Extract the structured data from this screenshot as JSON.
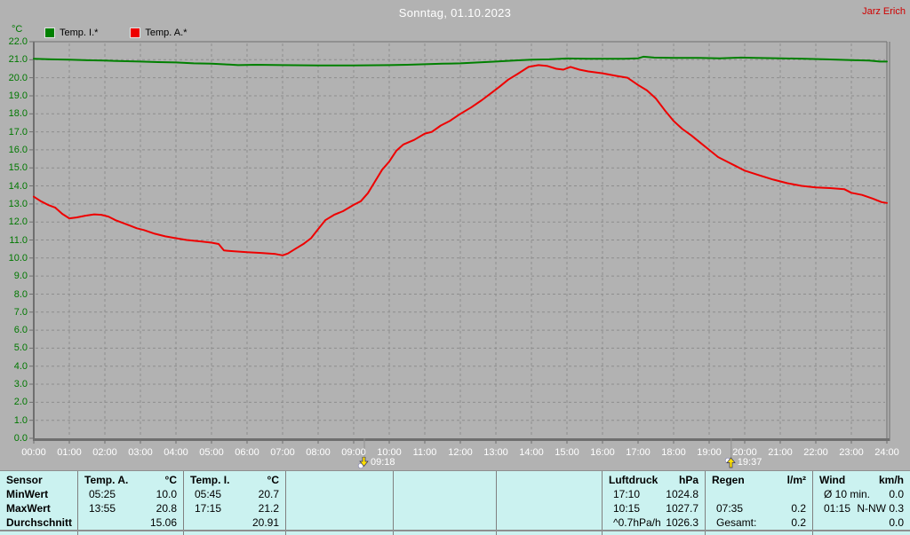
{
  "header": {
    "title": "Sonntag, 01.10.2023",
    "user": "Jarz Erich"
  },
  "legend": [
    {
      "label": "Temp. I.*",
      "color": "#008000"
    },
    {
      "label": "Temp. A.*",
      "color": "#ee0000"
    }
  ],
  "chart_data": {
    "type": "line",
    "title": "Sonntag, 01.10.2023",
    "grid": true,
    "legend_position": "top-left",
    "y_axis": {
      "unit": "°C",
      "min": 0,
      "max": 22,
      "tick_step": 1
    },
    "x_axis": {
      "min": 0,
      "max": 24,
      "tick_step": 1,
      "tick_labels": [
        "00:00",
        "01:00",
        "02:00",
        "03:00",
        "04:00",
        "05:00",
        "06:00",
        "07:00",
        "08:00",
        "09:00",
        "10:00",
        "11:00",
        "12:00",
        "13:00",
        "14:00",
        "15:00",
        "16:00",
        "17:00",
        "18:00",
        "19:00",
        "20:00",
        "21:00",
        "22:00",
        "23:00",
        "24:00"
      ]
    },
    "series": [
      {
        "id": "temp-i",
        "name": "Temp. I.*",
        "color": "#008000",
        "points": [
          [
            0,
            21.05
          ],
          [
            0.5,
            21.02
          ],
          [
            1,
            21.0
          ],
          [
            1.5,
            20.97
          ],
          [
            2,
            20.95
          ],
          [
            2.5,
            20.92
          ],
          [
            3,
            20.9
          ],
          [
            3.5,
            20.87
          ],
          [
            4,
            20.85
          ],
          [
            4.5,
            20.8
          ],
          [
            5,
            20.78
          ],
          [
            5.5,
            20.73
          ],
          [
            5.75,
            20.7
          ],
          [
            6.25,
            20.72
          ],
          [
            7,
            20.7
          ],
          [
            8,
            20.68
          ],
          [
            9,
            20.68
          ],
          [
            10,
            20.7
          ],
          [
            10.5,
            20.72
          ],
          [
            11,
            20.75
          ],
          [
            11.5,
            20.78
          ],
          [
            12,
            20.8
          ],
          [
            12.5,
            20.85
          ],
          [
            13,
            20.9
          ],
          [
            13.5,
            20.95
          ],
          [
            14,
            21.0
          ],
          [
            14.5,
            21.02
          ],
          [
            15,
            21.07
          ],
          [
            15.6,
            21.05
          ],
          [
            16.6,
            21.05
          ],
          [
            17,
            21.08
          ],
          [
            17.15,
            21.17
          ],
          [
            17.45,
            21.12
          ],
          [
            18,
            21.1
          ],
          [
            18.7,
            21.1
          ],
          [
            19.3,
            21.08
          ],
          [
            19.9,
            21.12
          ],
          [
            20.3,
            21.1
          ],
          [
            21,
            21.08
          ],
          [
            21.7,
            21.05
          ],
          [
            22.3,
            21.02
          ],
          [
            23,
            20.98
          ],
          [
            23.5,
            20.95
          ],
          [
            23.8,
            20.9
          ],
          [
            24,
            20.9
          ]
        ]
      },
      {
        "id": "temp-a",
        "name": "Temp. A.*",
        "color": "#ee0000",
        "points": [
          [
            0,
            13.4
          ],
          [
            0.2,
            13.15
          ],
          [
            0.4,
            12.95
          ],
          [
            0.6,
            12.8
          ],
          [
            0.8,
            12.45
          ],
          [
            1,
            12.2
          ],
          [
            1.2,
            12.25
          ],
          [
            1.45,
            12.35
          ],
          [
            1.7,
            12.42
          ],
          [
            1.9,
            12.4
          ],
          [
            2.1,
            12.3
          ],
          [
            2.3,
            12.1
          ],
          [
            2.5,
            11.95
          ],
          [
            2.7,
            11.8
          ],
          [
            2.9,
            11.65
          ],
          [
            3.1,
            11.55
          ],
          [
            3.4,
            11.35
          ],
          [
            3.7,
            11.2
          ],
          [
            4,
            11.1
          ],
          [
            4.3,
            11.0
          ],
          [
            4.7,
            10.92
          ],
          [
            5,
            10.85
          ],
          [
            5.2,
            10.78
          ],
          [
            5.35,
            10.42
          ],
          [
            5.6,
            10.38
          ],
          [
            6,
            10.32
          ],
          [
            6.4,
            10.28
          ],
          [
            6.8,
            10.22
          ],
          [
            7,
            10.15
          ],
          [
            7.15,
            10.25
          ],
          [
            7.35,
            10.5
          ],
          [
            7.6,
            10.8
          ],
          [
            7.8,
            11.1
          ],
          [
            8,
            11.6
          ],
          [
            8.2,
            12.1
          ],
          [
            8.45,
            12.4
          ],
          [
            8.7,
            12.6
          ],
          [
            9,
            12.95
          ],
          [
            9.2,
            13.15
          ],
          [
            9.4,
            13.6
          ],
          [
            9.6,
            14.25
          ],
          [
            9.8,
            14.9
          ],
          [
            10,
            15.35
          ],
          [
            10.2,
            15.95
          ],
          [
            10.4,
            16.3
          ],
          [
            10.7,
            16.55
          ],
          [
            11,
            16.9
          ],
          [
            11.2,
            17.0
          ],
          [
            11.45,
            17.35
          ],
          [
            11.7,
            17.6
          ],
          [
            12,
            18.0
          ],
          [
            12.3,
            18.35
          ],
          [
            12.6,
            18.75
          ],
          [
            12.9,
            19.2
          ],
          [
            13.1,
            19.5
          ],
          [
            13.35,
            19.9
          ],
          [
            13.6,
            20.2
          ],
          [
            13.92,
            20.6
          ],
          [
            14.2,
            20.7
          ],
          [
            14.45,
            20.65
          ],
          [
            14.7,
            20.5
          ],
          [
            14.9,
            20.45
          ],
          [
            15.1,
            20.6
          ],
          [
            15.35,
            20.45
          ],
          [
            15.6,
            20.35
          ],
          [
            16,
            20.25
          ],
          [
            16.4,
            20.1
          ],
          [
            16.7,
            20.0
          ],
          [
            17,
            19.6
          ],
          [
            17.25,
            19.3
          ],
          [
            17.5,
            18.85
          ],
          [
            17.75,
            18.2
          ],
          [
            18,
            17.6
          ],
          [
            18.25,
            17.15
          ],
          [
            18.5,
            16.8
          ],
          [
            18.75,
            16.4
          ],
          [
            19,
            16.0
          ],
          [
            19.25,
            15.6
          ],
          [
            19.5,
            15.35
          ],
          [
            19.75,
            15.1
          ],
          [
            20,
            14.85
          ],
          [
            20.4,
            14.6
          ],
          [
            20.8,
            14.35
          ],
          [
            21.2,
            14.15
          ],
          [
            21.6,
            14.0
          ],
          [
            22,
            13.92
          ],
          [
            22.4,
            13.88
          ],
          [
            22.8,
            13.82
          ],
          [
            23,
            13.62
          ],
          [
            23.3,
            13.5
          ],
          [
            23.6,
            13.3
          ],
          [
            23.85,
            13.1
          ],
          [
            24,
            13.05
          ]
        ]
      }
    ],
    "event_markers": [
      {
        "label": "09:18",
        "hour": 9.3,
        "icon": "down"
      },
      {
        "label": "19:37",
        "hour": 19.62,
        "icon": "up"
      }
    ]
  },
  "stats_table": {
    "row_labels": [
      "Sensor",
      "MinWert",
      "MaxWert",
      "Durchschnitt"
    ],
    "columns": [
      {
        "id": "temp-a",
        "name": "Temp. A.",
        "unit": "°C",
        "min": {
          "time": "05:25",
          "value": "10.0"
        },
        "max": {
          "time": "13:55",
          "value": "20.8"
        },
        "avg": {
          "time": "",
          "value": "15.06"
        }
      },
      {
        "id": "temp-i",
        "name": "Temp. I.",
        "unit": "°C",
        "min": {
          "time": "05:45",
          "value": "20.7"
        },
        "max": {
          "time": "17:15",
          "value": "21.2"
        },
        "avg": {
          "time": "",
          "value": "20.91"
        }
      },
      {
        "id": "empty-1"
      },
      {
        "id": "empty-2"
      },
      {
        "id": "empty-3"
      },
      {
        "id": "luftdruck",
        "name": "Luftdruck",
        "unit": "hPa",
        "min": {
          "time": "17:10",
          "value": "1024.8"
        },
        "max": {
          "time": "10:15",
          "value": "1027.7"
        },
        "avg": {
          "time": "^0.7hPa/h",
          "value": "1026.3"
        }
      },
      {
        "id": "regen",
        "name": "Regen",
        "unit": "l/m²",
        "min": {
          "time": "",
          "value": ""
        },
        "max": {
          "time": "07:35",
          "value": "0.2"
        },
        "avg": {
          "time": "Gesamt:",
          "value": "0.2"
        }
      },
      {
        "id": "wind",
        "name": "Wind",
        "unit": "km/h",
        "min": {
          "time": "Ø 10 min.",
          "value": "0.0"
        },
        "max": {
          "time": "01:15",
          "value": "N-NW 0.3"
        },
        "avg": {
          "time": "",
          "value": "0.0"
        }
      }
    ]
  }
}
